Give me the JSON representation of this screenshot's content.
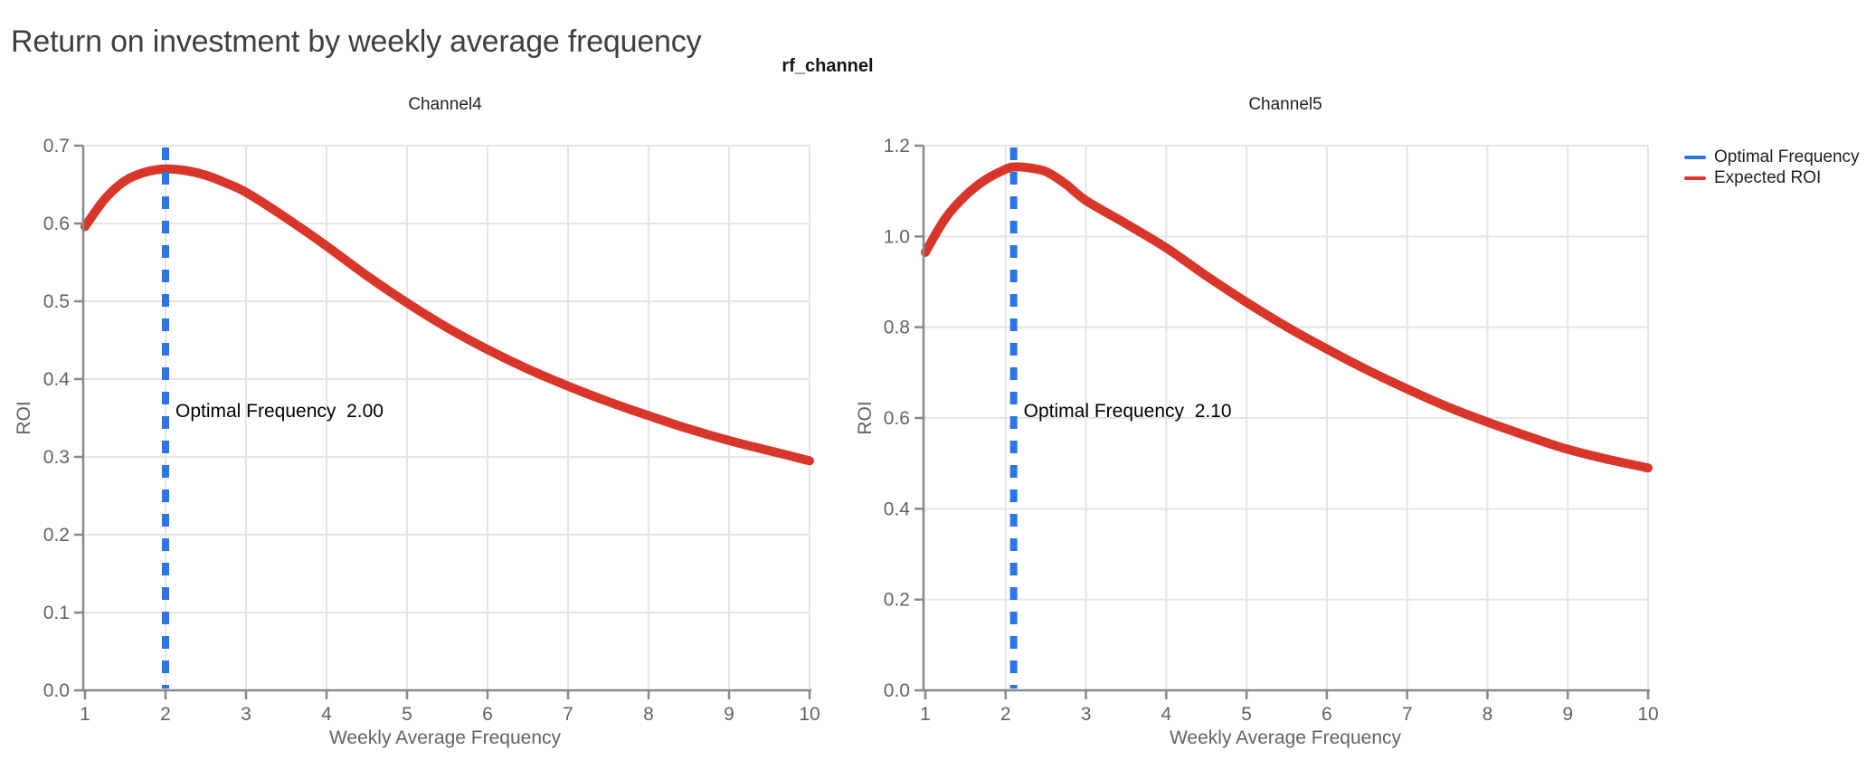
{
  "page_title": "Return on investment by weekly average frequency",
  "figure": {
    "suptitle": "rf_channel"
  },
  "legend": {
    "items": [
      {
        "label": "Optimal Frequency",
        "color": "#2a76e8"
      },
      {
        "label": "Expected ROI",
        "color": "#d8362a"
      }
    ]
  },
  "colors": {
    "curve_red": "#d8362a",
    "optimal_blue": "#2a76e8",
    "grid": "#e5e5e5",
    "axis": "#85898f",
    "tick_text": "#5f6368",
    "title_text": "#3c4043",
    "annotation_text": "#000000",
    "background": "#ffffff"
  },
  "chart_data": [
    {
      "type": "line",
      "title": "Channel4",
      "xlabel": "Weekly Average Frequency",
      "ylabel": "ROI",
      "xlim": [
        1,
        10
      ],
      "ylim": [
        0.0,
        0.7
      ],
      "xticks": [
        "1",
        "2",
        "3",
        "4",
        "5",
        "6",
        "7",
        "8",
        "9",
        "10"
      ],
      "ytick_labels": [
        "0.0",
        "0.1",
        "0.2",
        "0.3",
        "0.4",
        "0.5",
        "0.6",
        "0.7"
      ],
      "ytick_values": [
        0.0,
        0.1,
        0.2,
        0.3,
        0.4,
        0.5,
        0.6,
        0.7
      ],
      "grid": true,
      "legend_position": "outside-right",
      "optimal_frequency": 2.0,
      "annotation": "Optimal Frequency  2.00",
      "series": [
        {
          "name": "Expected ROI",
          "x": [
            1,
            1.25,
            1.5,
            1.75,
            2,
            2.25,
            2.5,
            2.75,
            3,
            3.5,
            4,
            4.5,
            5,
            5.5,
            6,
            6.5,
            7,
            7.5,
            8,
            8.5,
            9,
            9.5,
            10
          ],
          "y": [
            0.596,
            0.632,
            0.655,
            0.666,
            0.67,
            0.668,
            0.662,
            0.652,
            0.64,
            0.607,
            0.571,
            0.533,
            0.498,
            0.466,
            0.438,
            0.413,
            0.391,
            0.371,
            0.353,
            0.336,
            0.321,
            0.308,
            0.295
          ]
        }
      ]
    },
    {
      "type": "line",
      "title": "Channel5",
      "xlabel": "Weekly Average Frequency",
      "ylabel": "ROI",
      "xlim": [
        1,
        10
      ],
      "ylim": [
        0.0,
        1.2
      ],
      "xticks": [
        "1",
        "2",
        "3",
        "4",
        "5",
        "6",
        "7",
        "8",
        "9",
        "10"
      ],
      "ytick_labels": [
        "0.0",
        "0.2",
        "0.4",
        "0.6",
        "0.8",
        "1.0",
        "1.2"
      ],
      "ytick_values": [
        0.0,
        0.2,
        0.4,
        0.6,
        0.8,
        1.0,
        1.2
      ],
      "grid": true,
      "legend_position": "outside-right",
      "optimal_frequency": 2.1,
      "annotation": "Optimal Frequency  2.10",
      "series": [
        {
          "name": "Expected ROI",
          "x": [
            1,
            1.25,
            1.5,
            1.75,
            2,
            2.1,
            2.25,
            2.5,
            2.75,
            3,
            3.5,
            4,
            4.5,
            5,
            5.5,
            6,
            6.5,
            7,
            7.5,
            8,
            8.5,
            9,
            9.5,
            10
          ],
          "y": [
            0.965,
            1.04,
            1.09,
            1.125,
            1.148,
            1.153,
            1.152,
            1.143,
            1.115,
            1.079,
            1.028,
            0.975,
            0.913,
            0.855,
            0.801,
            0.752,
            0.706,
            0.664,
            0.625,
            0.591,
            0.56,
            0.531,
            0.509,
            0.49
          ]
        }
      ]
    }
  ]
}
